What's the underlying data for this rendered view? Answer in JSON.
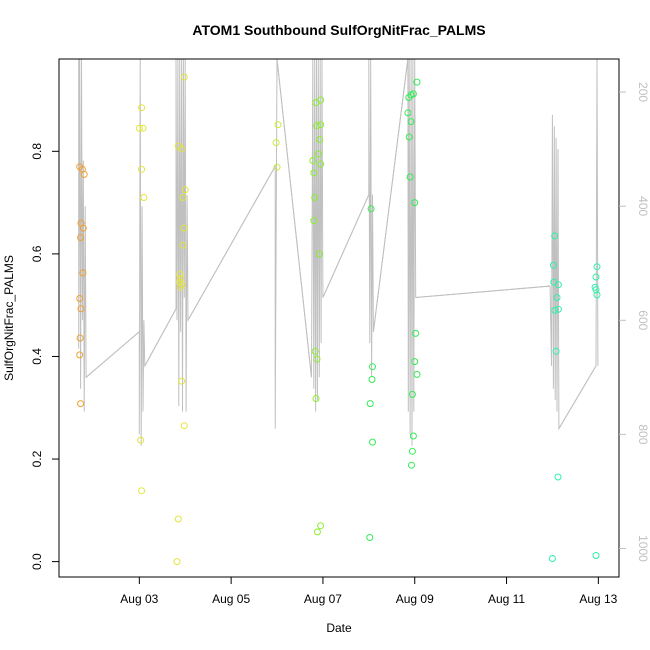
{
  "chart_data": {
    "type": "scatter",
    "title": "ATOM1 Southbound SulfOrgNitFrac_PALMS",
    "xlabel": "Date",
    "ylabel": "SulfOrgNitFrac_PALMS",
    "x_ticks": [
      "Aug 03",
      "Aug 05",
      "Aug 07",
      "Aug 09",
      "Aug 11",
      "Aug 13"
    ],
    "x_tick_days": [
      3,
      5,
      7,
      9,
      11,
      13
    ],
    "xlim_days": [
      1.25,
      13.45
    ],
    "ylim": [
      -0.03,
      0.98
    ],
    "y_ticks": [
      0.0,
      0.2,
      0.4,
      0.6,
      0.8
    ],
    "y_tick_labels": [
      "0.0",
      "0.2",
      "0.4",
      "0.6",
      "0.8"
    ],
    "y2_ticks": [
      200,
      400,
      600,
      800,
      1000
    ],
    "y2_tick_labels": [
      "200",
      "400",
      "600",
      "800",
      "1000"
    ],
    "y2lim": [
      1050,
      142
    ],
    "grid": false,
    "legend": "none",
    "track_color": "#c0c0c0",
    "colors": {
      "orange": "#f0a030",
      "yellow": "#e4e43a",
      "yellowgreen": "#c6ef3a",
      "lime": "#8aef30",
      "green": "#33ec55",
      "teal": "#2ef0a8"
    },
    "points": [
      {
        "x": 1.7,
        "y": 0.77,
        "c": "orange"
      },
      {
        "x": 1.76,
        "y": 0.765,
        "c": "orange"
      },
      {
        "x": 1.8,
        "y": 0.755,
        "c": "orange"
      },
      {
        "x": 1.73,
        "y": 0.66,
        "c": "orange"
      },
      {
        "x": 1.78,
        "y": 0.65,
        "c": "orange"
      },
      {
        "x": 1.72,
        "y": 0.632,
        "c": "orange"
      },
      {
        "x": 1.77,
        "y": 0.563,
        "c": "orange"
      },
      {
        "x": 1.7,
        "y": 0.513,
        "c": "orange"
      },
      {
        "x": 1.73,
        "y": 0.493,
        "c": "orange"
      },
      {
        "x": 1.71,
        "y": 0.436,
        "c": "orange"
      },
      {
        "x": 1.7,
        "y": 0.403,
        "c": "orange"
      },
      {
        "x": 1.72,
        "y": 0.308,
        "c": "orange"
      },
      {
        "x": 3.05,
        "y": 0.885,
        "c": "yellow"
      },
      {
        "x": 3.0,
        "y": 0.845,
        "c": "yellow"
      },
      {
        "x": 3.08,
        "y": 0.845,
        "c": "yellow"
      },
      {
        "x": 3.05,
        "y": 0.765,
        "c": "yellow"
      },
      {
        "x": 3.1,
        "y": 0.71,
        "c": "yellow"
      },
      {
        "x": 3.03,
        "y": 0.237,
        "c": "yellow"
      },
      {
        "x": 3.05,
        "y": 0.138,
        "c": "yellow"
      },
      {
        "x": 3.98,
        "y": 0.945,
        "c": "yellow"
      },
      {
        "x": 3.85,
        "y": 0.81,
        "c": "yellow"
      },
      {
        "x": 3.92,
        "y": 0.805,
        "c": "yellow"
      },
      {
        "x": 4.0,
        "y": 0.725,
        "c": "yellow"
      },
      {
        "x": 3.95,
        "y": 0.71,
        "c": "yellow"
      },
      {
        "x": 3.97,
        "y": 0.65,
        "c": "yellow"
      },
      {
        "x": 3.95,
        "y": 0.617,
        "c": "yellow"
      },
      {
        "x": 3.88,
        "y": 0.56,
        "c": "yellow"
      },
      {
        "x": 3.9,
        "y": 0.552,
        "c": "yellow"
      },
      {
        "x": 3.87,
        "y": 0.545,
        "c": "yellow"
      },
      {
        "x": 3.93,
        "y": 0.54,
        "c": "yellow"
      },
      {
        "x": 3.9,
        "y": 0.535,
        "c": "yellow"
      },
      {
        "x": 3.92,
        "y": 0.352,
        "c": "yellow"
      },
      {
        "x": 3.98,
        "y": 0.265,
        "c": "yellow"
      },
      {
        "x": 3.85,
        "y": 0.083,
        "c": "yellow"
      },
      {
        "x": 3.82,
        "y": 0.0,
        "c": "yellow"
      },
      {
        "x": 6.02,
        "y": 0.852,
        "c": "yellowgreen"
      },
      {
        "x": 5.98,
        "y": 0.817,
        "c": "yellowgreen"
      },
      {
        "x": 6.0,
        "y": 0.769,
        "c": "yellowgreen"
      },
      {
        "x": 6.85,
        "y": 0.895,
        "c": "lime"
      },
      {
        "x": 6.95,
        "y": 0.9,
        "c": "lime"
      },
      {
        "x": 6.87,
        "y": 0.85,
        "c": "lime"
      },
      {
        "x": 6.95,
        "y": 0.852,
        "c": "lime"
      },
      {
        "x": 6.93,
        "y": 0.823,
        "c": "lime"
      },
      {
        "x": 6.9,
        "y": 0.795,
        "c": "lime"
      },
      {
        "x": 6.78,
        "y": 0.782,
        "c": "lime"
      },
      {
        "x": 6.95,
        "y": 0.775,
        "c": "lime"
      },
      {
        "x": 6.8,
        "y": 0.758,
        "c": "lime"
      },
      {
        "x": 6.82,
        "y": 0.71,
        "c": "lime"
      },
      {
        "x": 6.8,
        "y": 0.665,
        "c": "lime"
      },
      {
        "x": 6.92,
        "y": 0.6,
        "c": "lime"
      },
      {
        "x": 6.83,
        "y": 0.41,
        "c": "lime"
      },
      {
        "x": 6.87,
        "y": 0.395,
        "c": "lime"
      },
      {
        "x": 6.85,
        "y": 0.318,
        "c": "lime"
      },
      {
        "x": 6.95,
        "y": 0.07,
        "c": "lime"
      },
      {
        "x": 6.88,
        "y": 0.058,
        "c": "lime"
      },
      {
        "x": 8.05,
        "y": 0.688,
        "c": "green"
      },
      {
        "x": 8.08,
        "y": 0.38,
        "c": "green"
      },
      {
        "x": 8.07,
        "y": 0.355,
        "c": "green"
      },
      {
        "x": 8.03,
        "y": 0.308,
        "c": "green"
      },
      {
        "x": 8.08,
        "y": 0.233,
        "c": "green"
      },
      {
        "x": 8.02,
        "y": 0.047,
        "c": "green"
      },
      {
        "x": 9.05,
        "y": 0.935,
        "c": "green"
      },
      {
        "x": 8.92,
        "y": 0.91,
        "c": "green"
      },
      {
        "x": 8.97,
        "y": 0.912,
        "c": "green"
      },
      {
        "x": 8.87,
        "y": 0.905,
        "c": "green"
      },
      {
        "x": 8.85,
        "y": 0.875,
        "c": "green"
      },
      {
        "x": 8.92,
        "y": 0.858,
        "c": "green"
      },
      {
        "x": 8.88,
        "y": 0.828,
        "c": "green"
      },
      {
        "x": 8.9,
        "y": 0.75,
        "c": "green"
      },
      {
        "x": 9.0,
        "y": 0.7,
        "c": "green"
      },
      {
        "x": 9.02,
        "y": 0.445,
        "c": "green"
      },
      {
        "x": 9.0,
        "y": 0.39,
        "c": "green"
      },
      {
        "x": 9.05,
        "y": 0.365,
        "c": "green"
      },
      {
        "x": 8.95,
        "y": 0.326,
        "c": "green"
      },
      {
        "x": 8.97,
        "y": 0.245,
        "c": "green"
      },
      {
        "x": 8.95,
        "y": 0.215,
        "c": "green"
      },
      {
        "x": 8.93,
        "y": 0.188,
        "c": "green"
      },
      {
        "x": 12.05,
        "y": 0.635,
        "c": "teal"
      },
      {
        "x": 12.02,
        "y": 0.578,
        "c": "teal"
      },
      {
        "x": 12.03,
        "y": 0.545,
        "c": "teal"
      },
      {
        "x": 12.13,
        "y": 0.54,
        "c": "teal"
      },
      {
        "x": 12.1,
        "y": 0.515,
        "c": "teal"
      },
      {
        "x": 12.05,
        "y": 0.49,
        "c": "teal"
      },
      {
        "x": 12.13,
        "y": 0.492,
        "c": "teal"
      },
      {
        "x": 12.08,
        "y": 0.41,
        "c": "teal"
      },
      {
        "x": 12.12,
        "y": 0.165,
        "c": "teal"
      },
      {
        "x": 12.0,
        "y": 0.006,
        "c": "teal"
      },
      {
        "x": 12.97,
        "y": 0.575,
        "c": "teal"
      },
      {
        "x": 12.95,
        "y": 0.555,
        "c": "teal"
      },
      {
        "x": 12.93,
        "y": 0.535,
        "c": "teal"
      },
      {
        "x": 12.95,
        "y": 0.53,
        "c": "teal"
      },
      {
        "x": 12.97,
        "y": 0.52,
        "c": "teal"
      },
      {
        "x": 12.95,
        "y": 0.012,
        "c": "teal"
      }
    ],
    "altitude_track": [
      [
        1.68,
        142
      ],
      [
        1.68,
        650
      ],
      [
        1.7,
        142
      ],
      [
        1.72,
        720
      ],
      [
        1.74,
        142
      ],
      [
        1.76,
        600
      ],
      [
        1.78,
        320
      ],
      [
        1.8,
        760
      ],
      [
        1.82,
        400
      ],
      [
        1.84,
        700
      ],
      [
        3.0,
        620
      ],
      [
        3.0,
        800
      ],
      [
        3.02,
        142
      ],
      [
        3.04,
        820
      ],
      [
        3.06,
        400
      ],
      [
        3.08,
        760
      ],
      [
        3.1,
        600
      ],
      [
        3.12,
        680
      ],
      [
        3.8,
        580
      ],
      [
        3.8,
        142
      ],
      [
        3.82,
        600
      ],
      [
        3.84,
        142
      ],
      [
        3.86,
        750
      ],
      [
        3.88,
        142
      ],
      [
        3.9,
        620
      ],
      [
        3.92,
        142
      ],
      [
        3.94,
        760
      ],
      [
        3.96,
        142
      ],
      [
        3.98,
        560
      ],
      [
        4.0,
        142
      ],
      [
        4.02,
        760
      ],
      [
        4.04,
        380
      ],
      [
        4.06,
        600
      ],
      [
        5.96,
        330
      ],
      [
        5.96,
        790
      ],
      [
        6.0,
        142
      ],
      [
        6.75,
        700
      ],
      [
        6.78,
        142
      ],
      [
        6.8,
        720
      ],
      [
        6.82,
        142
      ],
      [
        6.84,
        760
      ],
      [
        6.86,
        142
      ],
      [
        6.88,
        740
      ],
      [
        6.9,
        142
      ],
      [
        6.92,
        700
      ],
      [
        6.94,
        142
      ],
      [
        6.96,
        640
      ],
      [
        6.98,
        142
      ],
      [
        7.0,
        560
      ],
      [
        8.0,
        380
      ],
      [
        8.0,
        142
      ],
      [
        8.02,
        640
      ],
      [
        8.04,
        142
      ],
      [
        8.06,
        700
      ],
      [
        8.08,
        380
      ],
      [
        8.1,
        620
      ],
      [
        8.85,
        142
      ],
      [
        8.86,
        760
      ],
      [
        8.88,
        142
      ],
      [
        8.9,
        800
      ],
      [
        8.92,
        142
      ],
      [
        8.94,
        820
      ],
      [
        8.96,
        142
      ],
      [
        8.98,
        760
      ],
      [
        9.0,
        142
      ],
      [
        9.02,
        560
      ],
      [
        11.95,
        540
      ],
      [
        11.98,
        680
      ],
      [
        12.0,
        240
      ],
      [
        12.02,
        720
      ],
      [
        12.04,
        260
      ],
      [
        12.06,
        740
      ],
      [
        12.08,
        280
      ],
      [
        12.1,
        760
      ],
      [
        12.12,
        300
      ],
      [
        12.14,
        790
      ],
      [
        12.95,
        680
      ],
      [
        12.97,
        142
      ],
      [
        12.99,
        680
      ]
    ],
    "altitude_transits": [
      [
        1.84,
        700,
        3.0,
        620
      ],
      [
        3.12,
        680,
        3.8,
        580
      ],
      [
        4.06,
        600,
        5.96,
        330
      ],
      [
        6.0,
        142,
        6.75,
        700
      ],
      [
        7.0,
        560,
        8.0,
        380
      ],
      [
        8.1,
        620,
        8.85,
        142
      ],
      [
        9.02,
        560,
        11.95,
        540
      ],
      [
        12.14,
        790,
        12.95,
        680
      ]
    ]
  }
}
